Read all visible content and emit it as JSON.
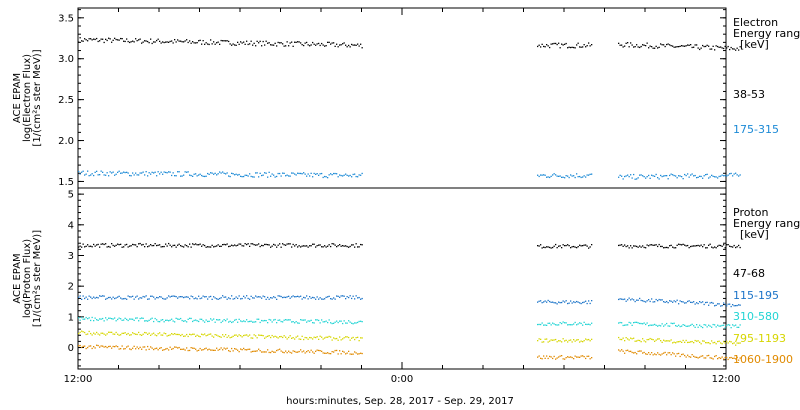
{
  "chart_data": [
    {
      "type": "scatter",
      "ylabel_lines": [
        "ACE EPAM",
        "log(Electron Flux)",
        "[1/(cm²s ster MeV)]"
      ],
      "ylim": [
        1.42,
        3.62
      ],
      "yticks": [
        1.5,
        2.0,
        2.5,
        3.0,
        3.5
      ],
      "ytick_labels": [
        "1.5",
        "2.0",
        "2.5",
        "3.0",
        "3.5"
      ],
      "legend_title": [
        "Electron",
        "Energy range",
        "[keV]"
      ],
      "series": [
        {
          "name": "38-53",
          "color": "#000000",
          "segments": [
            [
              0,
              21,
              3.24,
              3.17
            ],
            [
              34,
              38,
              3.17,
              3.17
            ],
            [
              40,
              49,
              3.18,
              3.13
            ]
          ]
        },
        {
          "name": "175-315",
          "color": "#1c8ad6",
          "segments": [
            [
              0,
              21,
              1.61,
              1.58
            ],
            [
              34,
              38,
              1.58,
              1.58
            ],
            [
              40,
              49,
              1.56,
              1.58
            ]
          ]
        }
      ]
    },
    {
      "type": "scatter",
      "ylabel_lines": [
        "ACE EPAM",
        "log(Proton Flux)",
        "[1/(cm²s ster MeV)]"
      ],
      "ylim": [
        -0.7,
        5.2
      ],
      "yticks": [
        0,
        1,
        2,
        3,
        4,
        5
      ],
      "ytick_labels": [
        "0",
        "1",
        "2",
        "3",
        "4",
        "5"
      ],
      "legend_title": [
        "Proton",
        "Energy range",
        "[keV]"
      ],
      "series": [
        {
          "name": "47-68",
          "color": "#000000",
          "segments": [
            [
              0,
              21,
              3.35,
              3.35
            ],
            [
              34,
              38,
              3.32,
              3.32
            ],
            [
              40,
              49,
              3.33,
              3.33
            ]
          ]
        },
        {
          "name": "115-195",
          "color": "#1c74c8",
          "segments": [
            [
              0,
              21,
              1.65,
              1.65
            ],
            [
              34,
              38,
              1.5,
              1.5
            ],
            [
              40,
              49,
              1.6,
              1.4
            ]
          ]
        },
        {
          "name": "310-580",
          "color": "#22d4d4",
          "segments": [
            [
              0,
              21,
              0.95,
              0.85
            ],
            [
              34,
              38,
              0.8,
              0.8
            ],
            [
              40,
              49,
              0.8,
              0.7
            ]
          ]
        },
        {
          "name": "795-1193",
          "color": "#d6d600",
          "segments": [
            [
              0,
              21,
              0.5,
              0.3
            ],
            [
              34,
              38,
              0.25,
              0.25
            ],
            [
              40,
              49,
              0.3,
              0.15
            ]
          ]
        },
        {
          "name": "1060-1900",
          "color": "#e08a00",
          "segments": [
            [
              0,
              21,
              0.05,
              -0.15
            ],
            [
              34,
              38,
              -0.3,
              -0.3
            ],
            [
              40,
              49,
              -0.1,
              -0.35
            ]
          ]
        }
      ]
    }
  ],
  "x_axis": {
    "range_hours": [
      0,
      48
    ],
    "ticks": [
      {
        "hour": 0,
        "label": "12:00"
      },
      {
        "hour": 24,
        "label": "0:00"
      },
      {
        "hour": 48,
        "label": "12:00"
      }
    ],
    "title": "hours:minutes, Sep. 28, 2017 - Sep. 29, 2017"
  }
}
